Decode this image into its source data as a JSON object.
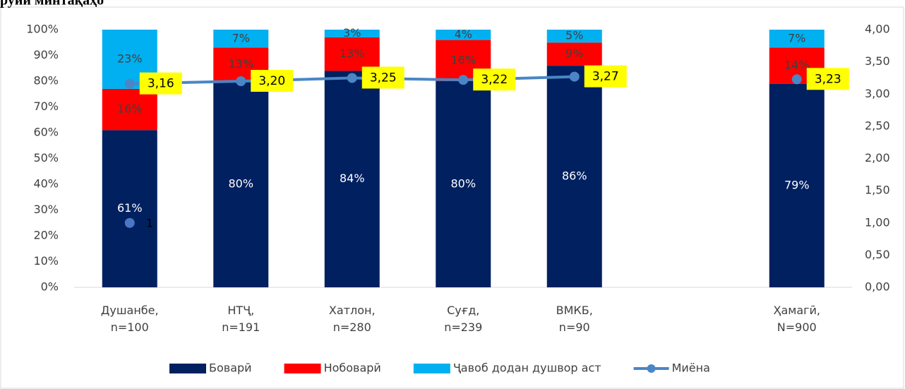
{
  "chart_data": {
    "type": "bar",
    "title": "руйи минтақаҳо",
    "stacked": true,
    "categories": [
      "Душанбе,\nn=100",
      "НТҶ,\nn=191",
      "Хатлон,\nn=280",
      "Суғд,\nn=239",
      "ВМКБ,\nn=90",
      null,
      "Ҳамагӣ,\nN=900"
    ],
    "series": [
      {
        "name": "Боварӣ",
        "color": "#002060",
        "values": [
          61,
          80,
          84,
          80,
          86,
          null,
          79
        ],
        "value_labels": [
          "61%",
          "80%",
          "84%",
          "80%",
          "86%",
          null,
          "79%"
        ]
      },
      {
        "name": "Нобоварӣ",
        "color": "#ff0000",
        "values": [
          16,
          13,
          13,
          16,
          9,
          null,
          14
        ],
        "value_labels": [
          "16%",
          "13%",
          "13%",
          "16%",
          "9%",
          null,
          "14%"
        ]
      },
      {
        "name": "Ҷавоб додан душвор аст",
        "color": "#00b0f0",
        "values": [
          23,
          7,
          3,
          4,
          5,
          null,
          7
        ],
        "value_labels": [
          "23%",
          "7%",
          "3%",
          "4%",
          "5%",
          null,
          "7%"
        ]
      },
      {
        "name": "Миёна",
        "type": "line",
        "axis": "y2",
        "color": "#4a86c5",
        "values": [
          3.16,
          3.2,
          3.25,
          3.22,
          3.27,
          null,
          3.23
        ],
        "value_labels": [
          "3,16",
          "3,20",
          "3,25",
          "3,22",
          "3,27",
          null,
          "3,23"
        ]
      },
      {
        "type": "point",
        "axis": "y2",
        "color": "#4a76c5",
        "values": [
          1,
          null,
          null,
          null,
          null,
          null,
          null
        ],
        "value_labels": [
          "1",
          null,
          null,
          null,
          null,
          null,
          null
        ]
      }
    ],
    "ylim": [
      0,
      100
    ],
    "yticks": [
      {
        "value": 0,
        "label": "0%"
      },
      {
        "value": 10,
        "label": "10%"
      },
      {
        "value": 20,
        "label": "20%"
      },
      {
        "value": 30,
        "label": "30%"
      },
      {
        "value": 40,
        "label": "40%"
      },
      {
        "value": 50,
        "label": "50%"
      },
      {
        "value": 60,
        "label": "60%"
      },
      {
        "value": 70,
        "label": "70%"
      },
      {
        "value": 80,
        "label": "80%"
      },
      {
        "value": 90,
        "label": "90%"
      },
      {
        "value": 100,
        "label": "100%"
      }
    ],
    "y2lim": [
      0,
      4
    ],
    "y2ticks": [
      {
        "value": 0,
        "label": "0,00"
      },
      {
        "value": 0.5,
        "label": "0,50"
      },
      {
        "value": 1,
        "label": "1,00"
      },
      {
        "value": 1.5,
        "label": "1,50"
      },
      {
        "value": 2,
        "label": "2,00"
      },
      {
        "value": 2.5,
        "label": "2,50"
      },
      {
        "value": 3,
        "label": "3,00"
      },
      {
        "value": 3.5,
        "label": "3,50"
      },
      {
        "value": 4,
        "label": "4,00"
      }
    ],
    "legend": "bottom"
  }
}
